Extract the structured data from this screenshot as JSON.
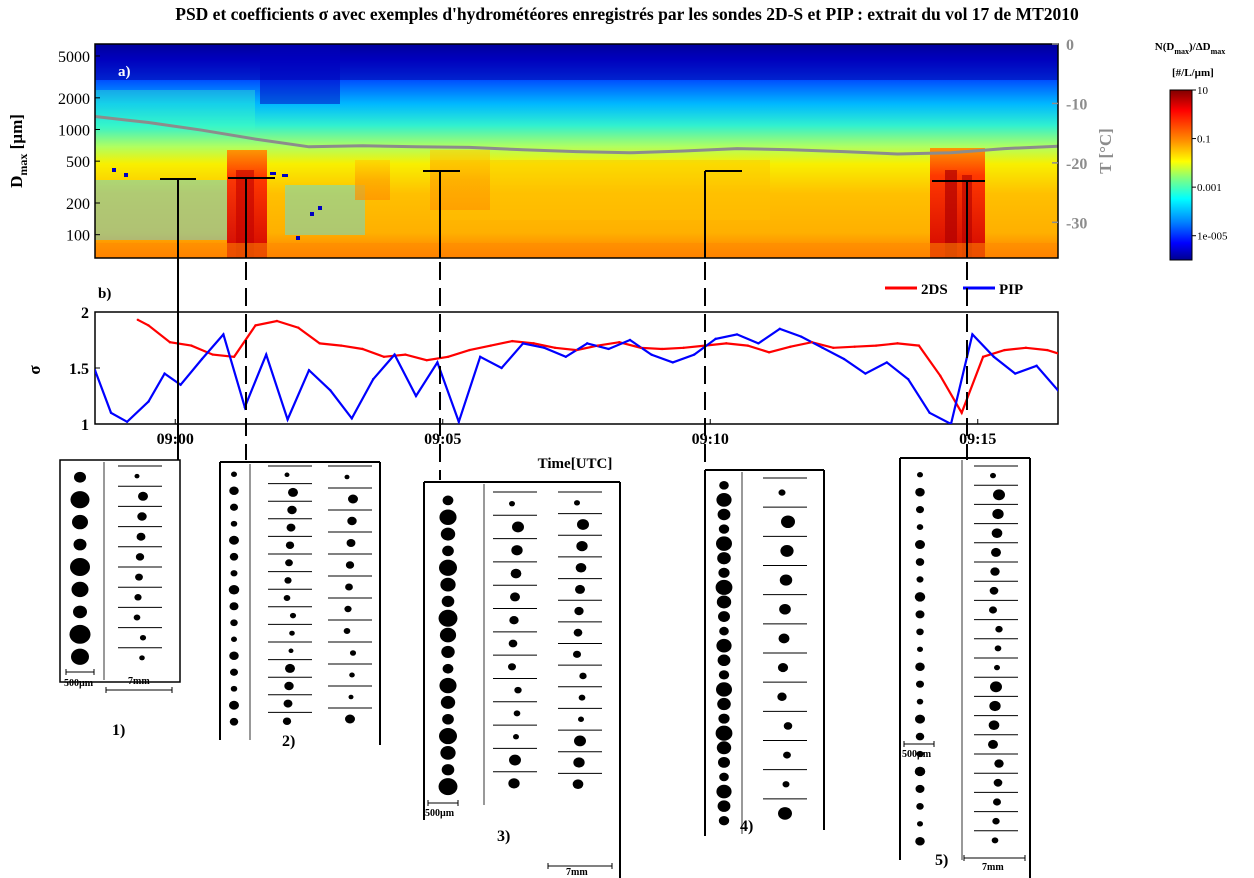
{
  "title": "PSD et coefficients σ avec exemples d'hydrométéores enregistrés par les sondes 2D-S et PIP : extrait du vol 17 de MT2010",
  "colors": {
    "series_2ds": "#ff0000",
    "series_pip": "#0000ff",
    "temperature": "#8c8c8c",
    "colormap": [
      "#00008f",
      "#0000ff",
      "#0080ff",
      "#00ffff",
      "#80ff80",
      "#ffff00",
      "#ff8000",
      "#ff0000",
      "#800000"
    ]
  },
  "chart_data": [
    {
      "type": "heatmap",
      "panel_label": "a)",
      "ylabel": "Dmax [µm]",
      "ylabel_main": "D",
      "ylabel_sub": "max",
      "ylabel_unit": " [µm]",
      "yscale": "log",
      "ylim": [
        60,
        6500
      ],
      "yticks": [
        100,
        200,
        500,
        1000,
        2000,
        5000
      ],
      "yticklabels": [
        "100",
        "200",
        "500",
        "1000",
        "2000",
        "5000"
      ],
      "xlim": [
        "08:58:30",
        "09:16:30"
      ],
      "y2label": "T [°C]",
      "y2lim": [
        -36,
        0
      ],
      "y2ticks": [
        0,
        -10,
        -20,
        -30
      ],
      "y2ticklabels": [
        "0",
        "-10",
        "-20",
        "-30"
      ],
      "colorbar": {
        "title_line1_main": "N(D",
        "title_line1_sub": "max",
        "title_line1_mid": ")/ΔD",
        "title_line1_sub2": "max",
        "title_line2": "[#/L/µm]",
        "scale": "log",
        "range": [
          1e-06,
          10
        ],
        "ticks": [
          10,
          0.1,
          0.001,
          1e-05
        ],
        "ticklabels": [
          "10",
          "0.1",
          "0.001",
          "1e-005"
        ]
      },
      "temperature_curve": {
        "name": "T",
        "times_min": [
          0,
          1,
          2,
          3,
          4,
          5,
          6,
          7,
          8,
          9,
          10,
          11,
          12,
          13,
          14,
          15,
          16,
          17,
          18
        ],
        "values": [
          -12.2,
          -13.2,
          -14.5,
          -16.0,
          -17.3,
          -17.1,
          -17.3,
          -17.4,
          -17.8,
          -18.1,
          -18.3,
          -18.0,
          -17.6,
          -17.8,
          -18.1,
          -18.5,
          -18.3,
          -17.6,
          -17.2
        ]
      }
    },
    {
      "type": "line",
      "panel_label": "b)",
      "ylabel": "σ",
      "xlabel": "Time[UTC]",
      "ylim": [
        1,
        2
      ],
      "yticks": [
        1,
        1.5,
        2
      ],
      "yticklabels": [
        "1",
        "1.5",
        "2"
      ],
      "xlim_min": [
        0,
        18
      ],
      "xticks_min": [
        1.5,
        6.5,
        11.5,
        16.5
      ],
      "xticklabels": [
        "09:00",
        "09:05",
        "09:10",
        "09:15"
      ],
      "legend": "top-right",
      "series": [
        {
          "name": "2DS",
          "t_min": [
            0.8,
            1.0,
            1.4,
            1.8,
            2.2,
            2.6,
            3.0,
            3.4,
            3.8,
            4.2,
            4.6,
            5.0,
            5.4,
            5.8,
            6.2,
            6.6,
            7.0,
            7.4,
            7.8,
            8.2,
            8.6,
            9.0,
            9.4,
            9.8,
            10.2,
            10.6,
            11.0,
            11.4,
            11.8,
            12.2,
            12.6,
            13.0,
            13.4,
            13.8,
            14.2,
            14.6,
            15.0,
            15.4,
            15.8,
            16.2,
            16.6,
            17.0,
            17.4,
            17.8,
            18.0
          ],
          "values": [
            1.93,
            1.88,
            1.73,
            1.7,
            1.62,
            1.6,
            1.88,
            1.92,
            1.86,
            1.72,
            1.7,
            1.67,
            1.6,
            1.62,
            1.57,
            1.6,
            1.66,
            1.7,
            1.74,
            1.72,
            1.68,
            1.66,
            1.7,
            1.73,
            1.68,
            1.67,
            1.68,
            1.7,
            1.72,
            1.7,
            1.64,
            1.69,
            1.73,
            1.68,
            1.69,
            1.7,
            1.72,
            1.7,
            1.43,
            1.1,
            1.6,
            1.66,
            1.68,
            1.66,
            1.63
          ]
        },
        {
          "name": "PIP",
          "t_min": [
            0.0,
            0.3,
            0.6,
            1.0,
            1.3,
            1.6,
            2.0,
            2.4,
            2.8,
            3.2,
            3.6,
            4.0,
            4.4,
            4.8,
            5.2,
            5.6,
            6.0,
            6.4,
            6.8,
            7.2,
            7.6,
            8.0,
            8.4,
            8.8,
            9.2,
            9.6,
            10.0,
            10.4,
            10.8,
            11.2,
            11.6,
            12.0,
            12.4,
            12.8,
            13.2,
            13.6,
            14.0,
            14.4,
            14.8,
            15.2,
            15.6,
            16.0,
            16.4,
            16.8,
            17.2,
            17.6,
            18.0
          ],
          "values": [
            1.48,
            1.1,
            1.02,
            1.2,
            1.45,
            1.35,
            1.58,
            1.8,
            1.15,
            1.62,
            1.04,
            1.48,
            1.3,
            1.05,
            1.4,
            1.62,
            1.25,
            1.55,
            1.02,
            1.6,
            1.5,
            1.72,
            1.68,
            1.6,
            1.72,
            1.67,
            1.75,
            1.62,
            1.55,
            1.62,
            1.76,
            1.8,
            1.72,
            1.85,
            1.78,
            1.68,
            1.58,
            1.45,
            1.55,
            1.4,
            1.1,
            1.0,
            1.8,
            1.6,
            1.45,
            1.52,
            1.3
          ]
        }
      ]
    }
  ],
  "samples": [
    {
      "label": "1)",
      "scale_small": "500µm",
      "scale_large": "7mm"
    },
    {
      "label": "2)"
    },
    {
      "label": "3)",
      "scale_small": "500µm",
      "scale_large": "7mm"
    },
    {
      "label": "4)"
    },
    {
      "label": "5)",
      "scale_small": "500µm",
      "scale_large": "7mm"
    }
  ]
}
